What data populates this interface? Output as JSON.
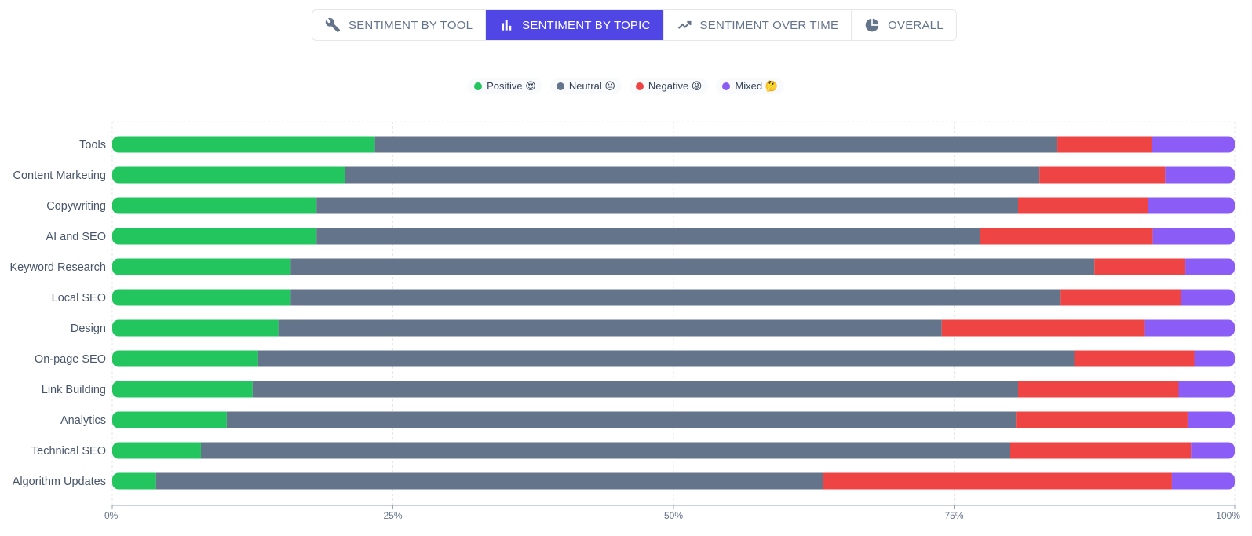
{
  "tabs": [
    {
      "label": "SENTIMENT BY TOOL",
      "icon": "wrench-icon",
      "active": false
    },
    {
      "label": "SENTIMENT BY TOPIC",
      "icon": "bar-chart-icon",
      "active": true
    },
    {
      "label": "SENTIMENT OVER TIME",
      "icon": "trend-line-icon",
      "active": false
    },
    {
      "label": "OVERALL",
      "icon": "pie-chart-icon",
      "active": false
    }
  ],
  "colors": {
    "Positive": "#22c55e",
    "Neutral": "#64748b",
    "Negative": "#ef4444",
    "Mixed": "#8b5cf6"
  },
  "chart_data": {
    "type": "bar",
    "orientation": "horizontal",
    "stacked": true,
    "legend_position": "top-center",
    "grid": true,
    "xlim": [
      0,
      100
    ],
    "x_ticks": [
      "0%",
      "25%",
      "50%",
      "75%",
      "100%"
    ],
    "categories": [
      "Tools",
      "Content Marketing",
      "Copywriting",
      "AI and SEO",
      "Keyword Research",
      "Local SEO",
      "Design",
      "On-page SEO",
      "Link Building",
      "Analytics",
      "Technical SEO",
      "Algorithm Updates"
    ],
    "series": [
      {
        "name": "Positive 😍",
        "values": [
          23.4,
          20.7,
          18.2,
          18.2,
          15.9,
          15.9,
          14.8,
          13.0,
          12.5,
          10.2,
          7.9,
          3.9
        ]
      },
      {
        "name": "Neutral 😐",
        "values": [
          60.8,
          61.9,
          62.5,
          59.1,
          71.6,
          68.6,
          59.1,
          72.7,
          68.2,
          70.3,
          72.1,
          59.4
        ]
      },
      {
        "name": "Negative 😡",
        "values": [
          8.4,
          11.2,
          11.6,
          15.4,
          8.1,
          10.7,
          18.1,
          10.7,
          14.3,
          15.3,
          16.1,
          31.1
        ]
      },
      {
        "name": "Mixed 🤔",
        "values": [
          7.4,
          6.2,
          7.7,
          7.3,
          4.4,
          4.8,
          8.0,
          3.6,
          5.0,
          4.2,
          3.9,
          5.6
        ]
      }
    ]
  }
}
